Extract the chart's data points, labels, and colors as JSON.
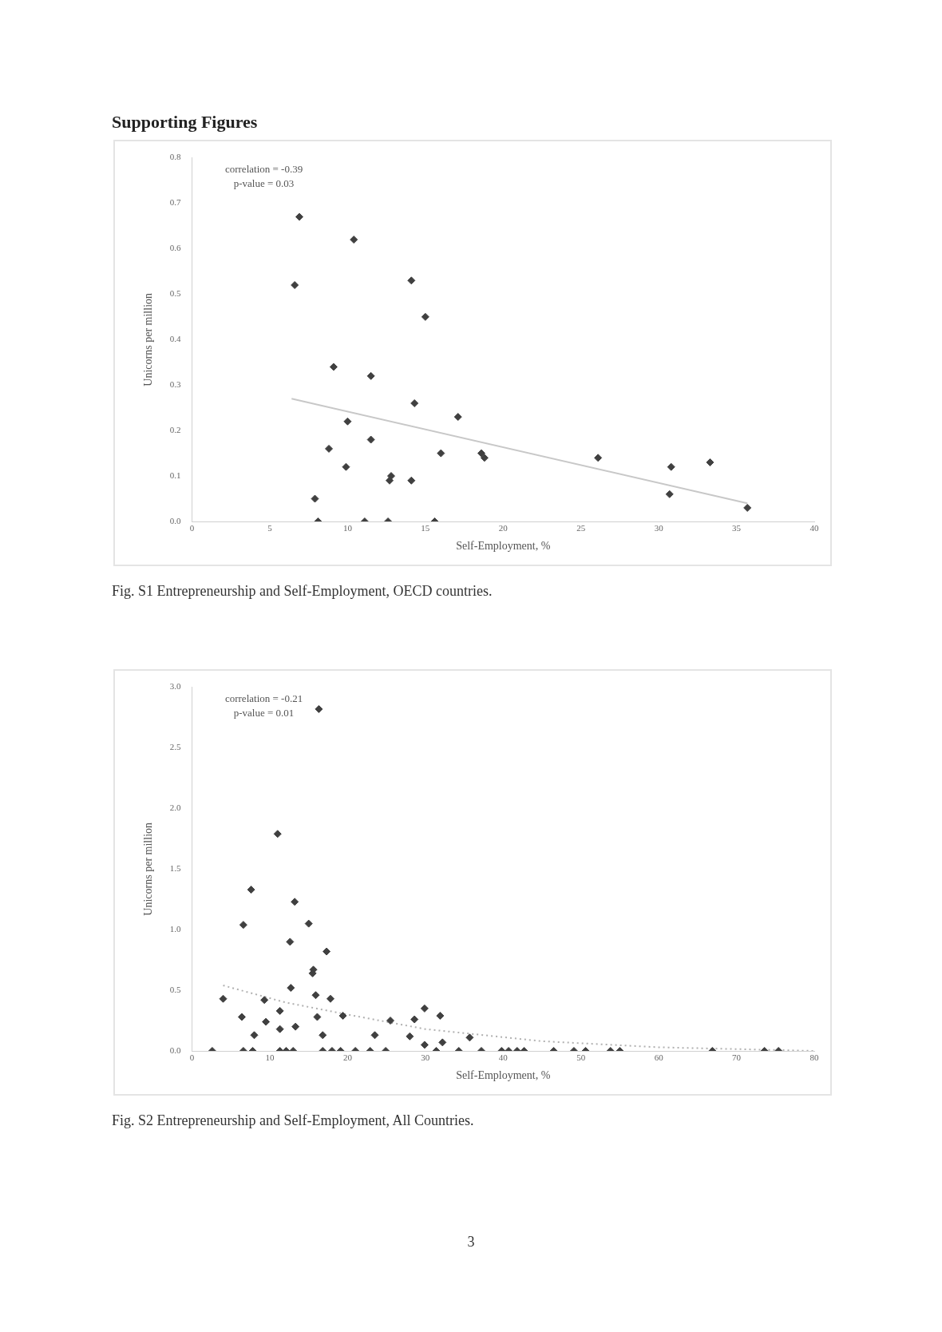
{
  "chart_data": [
    {
      "type": "scatter",
      "title": "Supporting Figures",
      "xlabel": "Self-Employment, %",
      "ylabel": "Unicorns per million",
      "xlim": [
        0,
        40
      ],
      "xticks": [
        0,
        5,
        10,
        15,
        20,
        25,
        30,
        35,
        40
      ],
      "ylim": [
        0,
        0.8
      ],
      "yticks": [
        {
          "value": 0,
          "label": "0.0"
        },
        {
          "value": 0.1,
          "label": "0.1"
        },
        {
          "value": 0.2,
          "label": "0.2"
        },
        {
          "value": 0.3,
          "label": "0.3"
        },
        {
          "value": 0.4,
          "label": "0.4"
        },
        {
          "value": 0.5,
          "label": "0.5"
        },
        {
          "value": 0.6,
          "label": "0.6"
        },
        {
          "value": 0.7,
          "label": "0.7"
        },
        {
          "value": 0.8,
          "label": "0.8"
        }
      ],
      "grid": false,
      "legend": false,
      "marker": "diamond",
      "series": [
        {
          "type": "scatter",
          "color": "#404040",
          "x": [
            6.9,
            10.4,
            6.6,
            14.1,
            15.0,
            9.1,
            11.5,
            14.3,
            17.1,
            10.0,
            11.5,
            8.8,
            16.0,
            18.6,
            18.8,
            26.1,
            30.8,
            33.3,
            9.9,
            12.8,
            12.7,
            14.1,
            7.9,
            30.7,
            35.7,
            8.1,
            11.1,
            12.6,
            15.6
          ],
          "values": [
            0.67,
            0.62,
            0.52,
            0.53,
            0.45,
            0.34,
            0.32,
            0.26,
            0.23,
            0.22,
            0.18,
            0.16,
            0.15,
            0.15,
            0.14,
            0.14,
            0.12,
            0.13,
            0.12,
            0.1,
            0.09,
            0.09,
            0.05,
            0.06,
            0.03,
            0,
            0,
            0,
            0
          ]
        },
        {
          "type": "line",
          "color": "#c8c8c8",
          "line_style": "solid",
          "marker": "none",
          "x": [
            6.4,
            35.7
          ],
          "values": [
            0.27,
            0.04
          ]
        }
      ],
      "annotations": [
        "correlation = -0.39",
        "p-value = 0.03",
        "Fig. S1  Entrepreneurship and Self-Employment, OECD countries."
      ]
    },
    {
      "type": "scatter",
      "xlabel": "Self-Employment, %",
      "ylabel": "Unicorns per million",
      "xlim": [
        0,
        80
      ],
      "xticks": [
        0,
        10,
        20,
        30,
        40,
        50,
        60,
        70,
        80
      ],
      "ylim": [
        0,
        3
      ],
      "yticks": [
        {
          "value": 0,
          "label": "0.0"
        },
        {
          "value": 0.5,
          "label": "0.5"
        },
        {
          "value": 1,
          "label": "1.0"
        },
        {
          "value": 1.5,
          "label": "1.5"
        },
        {
          "value": 2,
          "label": "2.0"
        },
        {
          "value": 2.5,
          "label": "2.5"
        },
        {
          "value": 3,
          "label": "3.0"
        }
      ],
      "grid": false,
      "legend": false,
      "marker": "diamond",
      "series": [
        {
          "type": "scatter",
          "color": "#404040",
          "x": [
            16.3,
            11.0,
            7.6,
            13.2,
            6.6,
            15.0,
            12.6,
            17.3,
            15.6,
            15.5,
            12.7,
            15.9,
            17.8,
            4.0,
            9.3,
            11.3,
            6.4,
            19.4,
            16.1,
            29.9,
            31.9,
            25.5,
            28.6,
            9.5,
            13.3,
            11.3,
            8.0,
            23.5,
            16.8,
            28.0,
            35.7,
            29.9,
            32.2,
            31.4,
            2.6,
            6.6,
            7.8,
            11.3,
            12.1,
            13.0,
            16.8,
            18.0,
            19.1,
            21.0,
            22.9,
            24.9,
            34.3,
            37.2,
            39.8,
            40.7,
            41.8,
            42.7,
            46.5,
            49.1,
            50.6,
            53.8,
            55.0,
            66.9,
            73.6,
            75.4
          ],
          "values": [
            2.82,
            1.79,
            1.33,
            1.23,
            1.04,
            1.05,
            0.9,
            0.82,
            0.67,
            0.64,
            0.52,
            0.46,
            0.43,
            0.43,
            0.42,
            0.33,
            0.28,
            0.29,
            0.28,
            0.35,
            0.29,
            0.25,
            0.26,
            0.24,
            0.2,
            0.18,
            0.13,
            0.13,
            0.13,
            0.12,
            0.11,
            0.05,
            0.07,
            0,
            0,
            0,
            0,
            0,
            0,
            0,
            0,
            0,
            0,
            0,
            0,
            0,
            0,
            0,
            0,
            0,
            0,
            0,
            0,
            0,
            0,
            0,
            0,
            0,
            0,
            0
          ]
        },
        {
          "type": "line",
          "color": "#b0b0b0",
          "line_style": "dotted",
          "marker": "none",
          "x": [
            4,
            12,
            20,
            30,
            45,
            60,
            80
          ],
          "values": [
            0.54,
            0.4,
            0.3,
            0.18,
            0.08,
            0.03,
            0
          ]
        }
      ],
      "annotations": [
        "correlation = -0.21",
        "p-value = 0.01",
        "Fig. S2  Entrepreneurship and Self-Employment, All Countries.",
        "3"
      ]
    }
  ]
}
